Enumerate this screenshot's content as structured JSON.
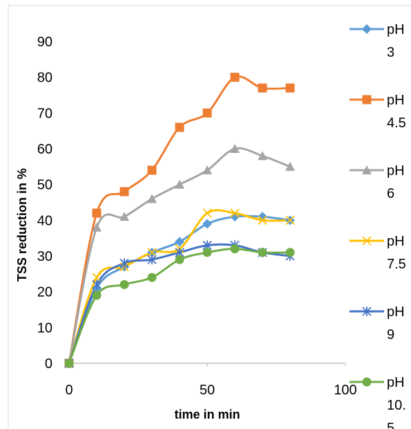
{
  "chart_data": {
    "type": "line",
    "title": "",
    "xlabel": "time in min",
    "ylabel": "TSS reduction in %",
    "xlim": [
      0,
      100
    ],
    "ylim": [
      0,
      90
    ],
    "xticks": [
      0,
      50,
      100
    ],
    "yticks": [
      0,
      10,
      20,
      30,
      40,
      50,
      60,
      70,
      80,
      90
    ],
    "grid": false,
    "legend_position": "right",
    "smooth": true,
    "x": [
      0,
      10,
      20,
      30,
      40,
      50,
      60,
      70,
      80
    ],
    "series": [
      {
        "name": "pH 3",
        "legend_lines": [
          "pH",
          "3"
        ],
        "color": "#5b9bd5",
        "marker": "diamond",
        "values": [
          0,
          21,
          27,
          31,
          34,
          39,
          41,
          41,
          40
        ]
      },
      {
        "name": "pH 4.5",
        "legend_lines": [
          "pH",
          "4.5"
        ],
        "color": "#ed7d31",
        "marker": "square",
        "values": [
          0,
          42,
          48,
          54,
          66,
          70,
          80,
          77,
          77
        ]
      },
      {
        "name": "pH 6",
        "legend_lines": [
          "pH",
          "6"
        ],
        "color": "#a5a5a5",
        "marker": "triangle",
        "values": [
          0,
          38,
          41,
          46,
          50,
          54,
          60,
          58,
          55
        ]
      },
      {
        "name": "pH 7.5",
        "legend_lines": [
          "pH",
          "7.5"
        ],
        "color": "#ffc000",
        "marker": "x",
        "values": [
          0,
          24,
          27,
          31,
          32,
          42,
          42,
          40,
          40
        ]
      },
      {
        "name": "pH 9",
        "legend_lines": [
          "pH",
          "9"
        ],
        "color": "#4472c4",
        "marker": "star",
        "values": [
          0,
          22,
          28,
          29,
          31,
          33,
          33,
          31,
          30
        ]
      },
      {
        "name": "pH 10.5",
        "legend_lines": [
          "pH",
          "10.",
          "5"
        ],
        "color": "#70ad47",
        "marker": "circle",
        "values": [
          0,
          19,
          22,
          24,
          29,
          31,
          32,
          31,
          31
        ]
      }
    ]
  }
}
